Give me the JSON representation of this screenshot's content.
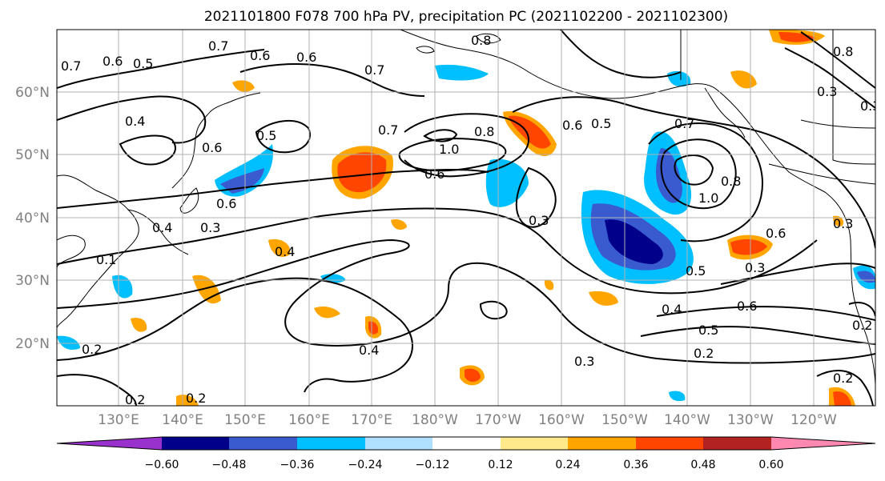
{
  "title": "2021101800 F078 700 hPa PV, precipitation PC (2021102200 - 2021102300)",
  "map": {
    "lat_labels": [
      "60°N",
      "50°N",
      "40°N",
      "30°N",
      "20°N"
    ],
    "lon_labels": [
      "130°E",
      "140°E",
      "150°E",
      "160°E",
      "170°E",
      "180°W",
      "170°W",
      "160°W",
      "150°W",
      "140°W",
      "130°W",
      "120°W"
    ]
  },
  "colorbar": {
    "labels": [
      "−0.60",
      "−0.48",
      "−0.36",
      "−0.24",
      "−0.12",
      "0.12",
      "0.24",
      "0.36",
      "0.48",
      "0.60"
    ],
    "colors": [
      "#9932cc",
      "#00008b",
      "#3a5bd0",
      "#00bfff",
      "#b0e0ff",
      "#ffffff",
      "#ffe98a",
      "#ffa500",
      "#ff4500",
      "#b22222",
      "#ff88b0"
    ]
  },
  "contour_labels": [
    "0.5",
    "0.7",
    "0.6",
    "0.7",
    "0.8",
    "0.7",
    "0.6",
    "0.6",
    "0.4",
    "0.6",
    "0.5",
    "0.6",
    "0.4",
    "0.1",
    "0.4",
    "0.2",
    "0.2",
    "0.7",
    "1.0",
    "0.8",
    "0.6",
    "0.4",
    "0.3",
    "0.3",
    "0.6",
    "0.5",
    "0.7",
    "1.0",
    "0.8",
    "0.6",
    "0.3",
    "0.5",
    "0.4",
    "0.6",
    "0.5",
    "0.2",
    "0.3",
    "0.2",
    "0.3",
    "0.2",
    "0.3",
    "0.8",
    "0.3",
    "0.2"
  ]
}
